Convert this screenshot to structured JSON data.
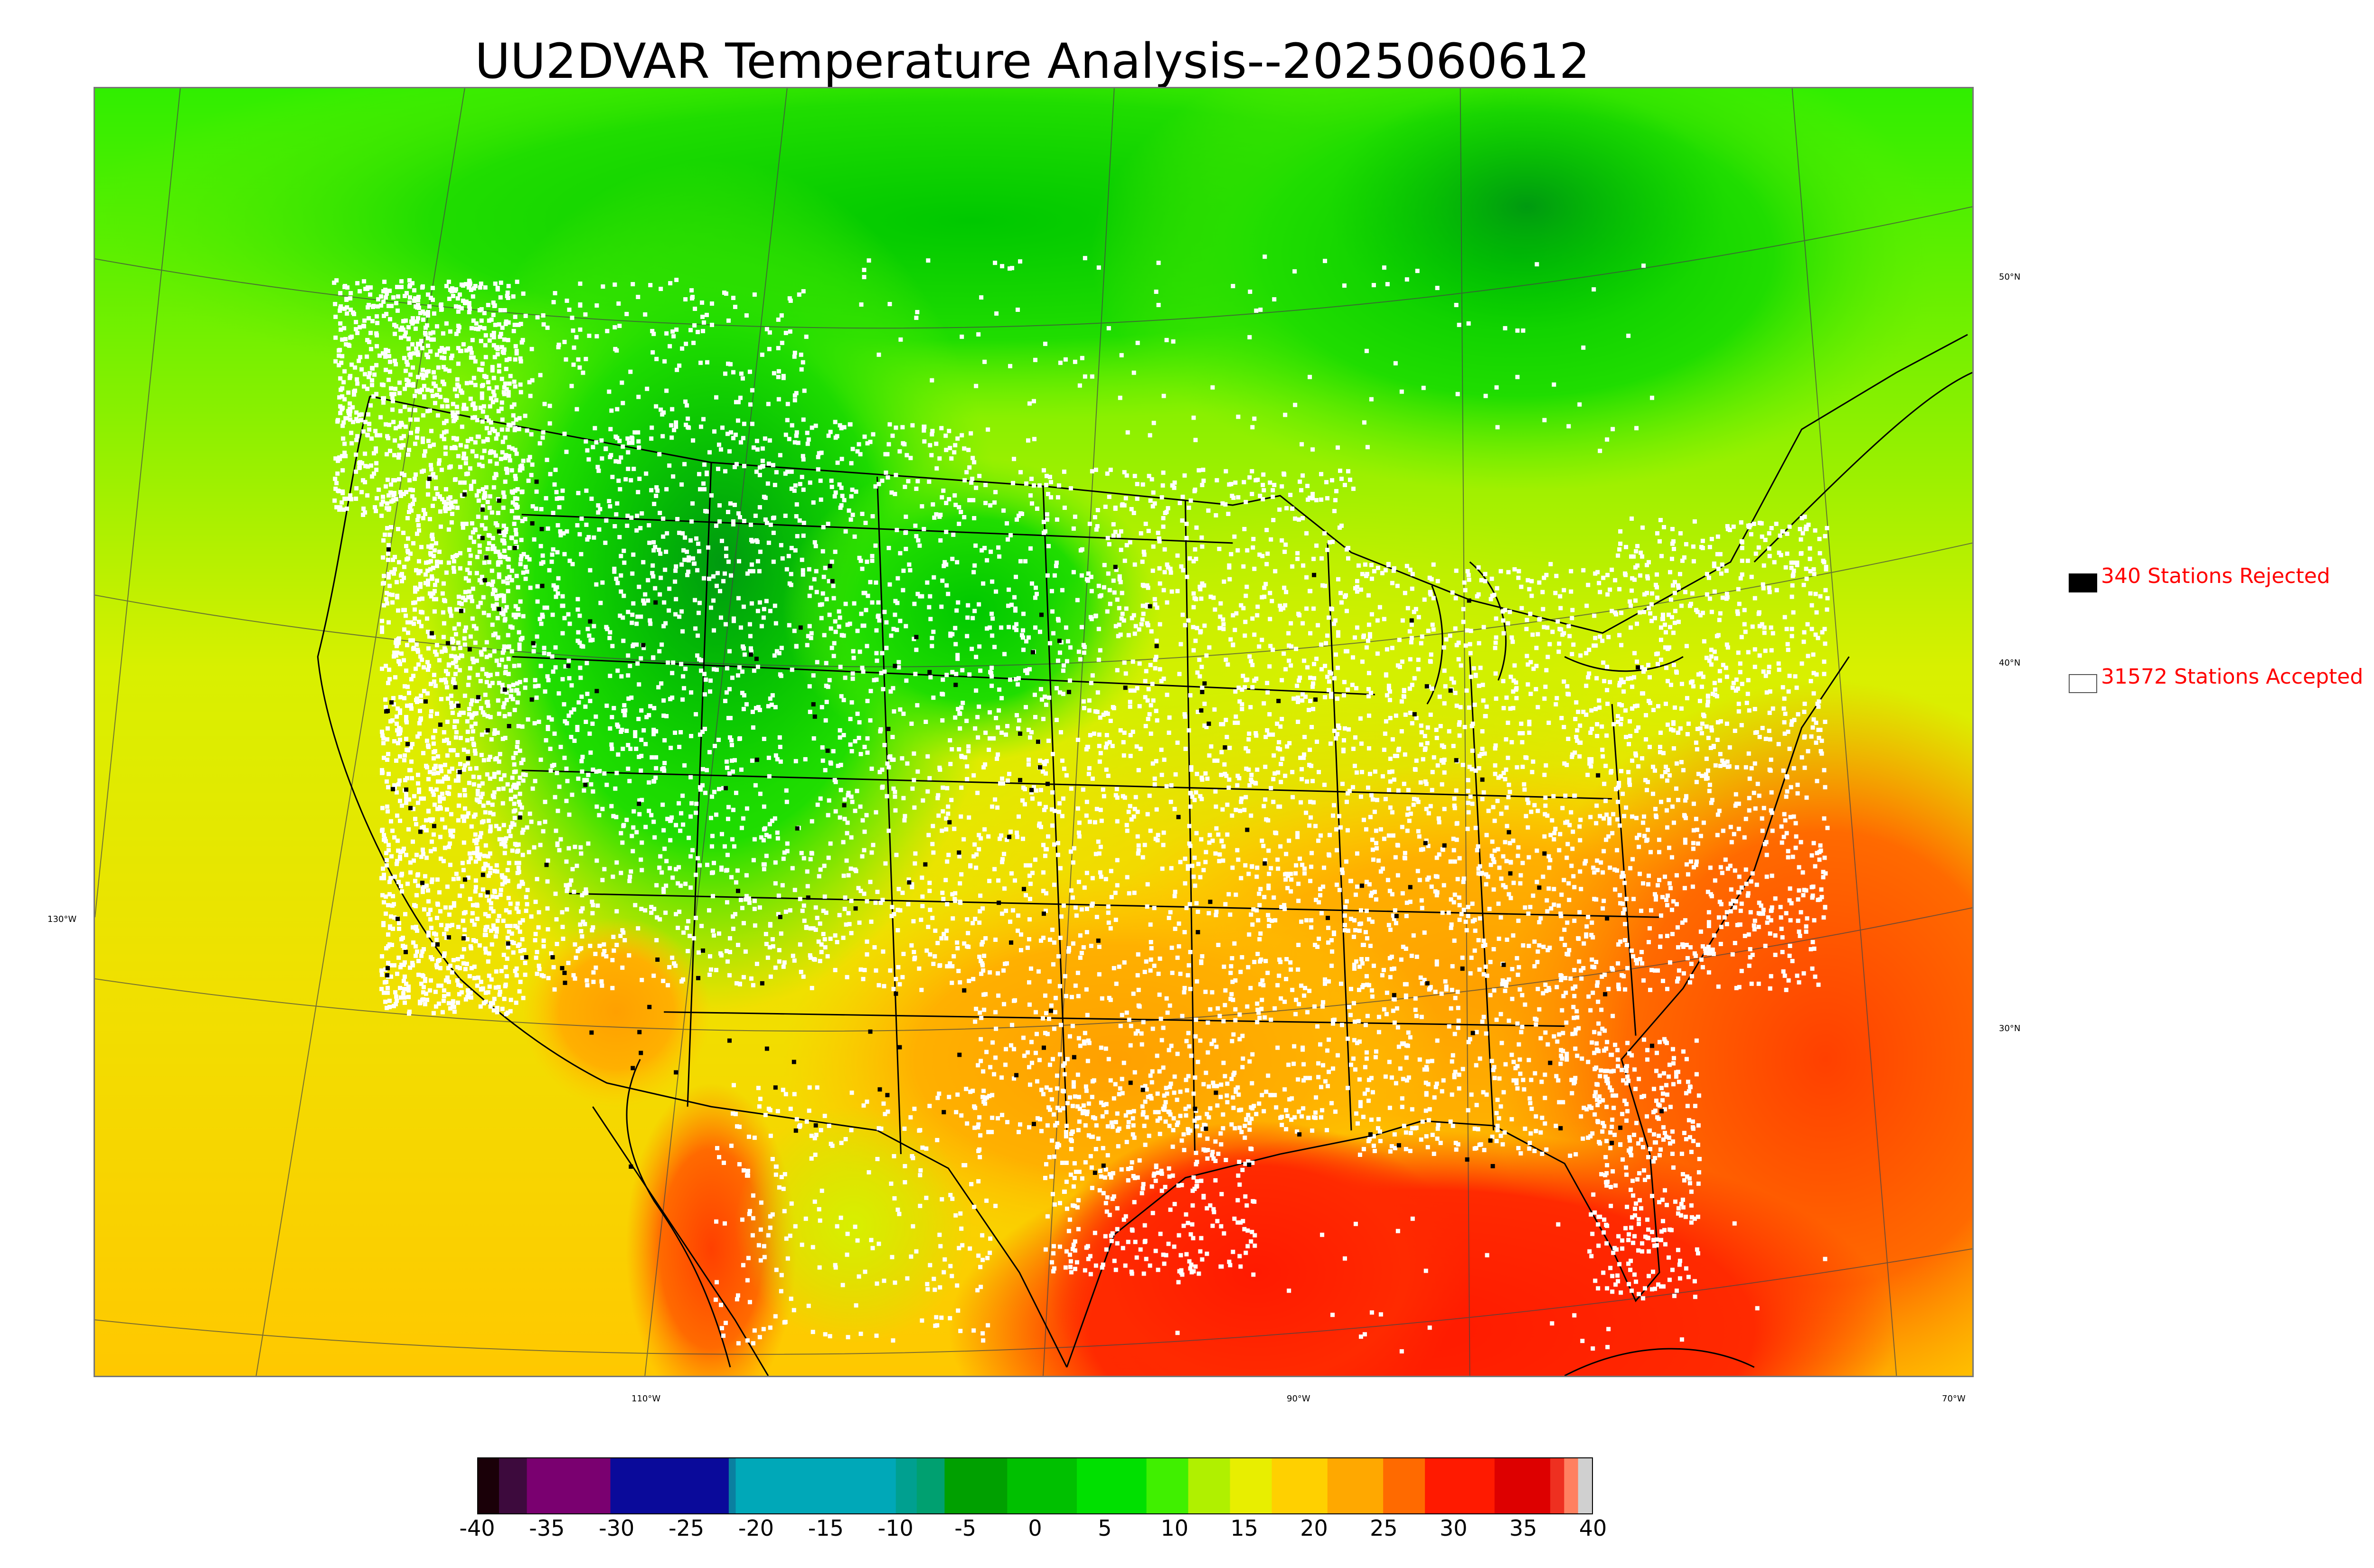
{
  "title": "UU2DVAR Temperature Analysis--2025060612",
  "map": {
    "lat_labels": [
      "50°N",
      "40°N",
      "30°N"
    ],
    "lon_labels": [
      "130°W",
      "110°W",
      "90°W",
      "70°W"
    ]
  },
  "legend": {
    "rejected": {
      "label": "340 Stations Rejected",
      "count": 340,
      "swatch_color": "#000000"
    },
    "accepted": {
      "label": "31572 Stations Accepted",
      "count": 31572,
      "swatch_color": "#ffffff"
    },
    "text_color": "#ff0000"
  },
  "colorbar": {
    "min": -40,
    "max": 40,
    "ticks": [
      "-40",
      "-35",
      "-30",
      "-25",
      "-20",
      "-15",
      "-10",
      "-5",
      "0",
      "5",
      "10",
      "15",
      "20",
      "25",
      "30",
      "35",
      "40"
    ],
    "segments": [
      {
        "from": -40,
        "to": -38.5,
        "color": "#1a0008"
      },
      {
        "from": -38.5,
        "to": -36.5,
        "color": "#3d0a3d"
      },
      {
        "from": -36.5,
        "to": -30.5,
        "color": "#7a0070"
      },
      {
        "from": -30.5,
        "to": -22,
        "color": "#0a0a9a"
      },
      {
        "from": -22,
        "to": -21.5,
        "color": "#0a80a0"
      },
      {
        "from": -21.5,
        "to": -10,
        "color": "#00a8b8"
      },
      {
        "from": -10,
        "to": -8.5,
        "color": "#00a090"
      },
      {
        "from": -8.5,
        "to": -6.5,
        "color": "#00a070"
      },
      {
        "from": -6.5,
        "to": -2,
        "color": "#00a000"
      },
      {
        "from": -2,
        "to": 3,
        "color": "#00c000"
      },
      {
        "from": 3,
        "to": 8,
        "color": "#00e000"
      },
      {
        "from": 8,
        "to": 11,
        "color": "#40f000"
      },
      {
        "from": 11,
        "to": 14,
        "color": "#b0f000"
      },
      {
        "from": 14,
        "to": 17,
        "color": "#e8ee00"
      },
      {
        "from": 17,
        "to": 21,
        "color": "#ffd000"
      },
      {
        "from": 21,
        "to": 25,
        "color": "#ffa800"
      },
      {
        "from": 25,
        "to": 28,
        "color": "#ff6a00"
      },
      {
        "from": 28,
        "to": 33,
        "color": "#ff1a00"
      },
      {
        "from": 33,
        "to": 37,
        "color": "#dd0000"
      },
      {
        "from": 37,
        "to": 38,
        "color": "#ee3020"
      },
      {
        "from": 38,
        "to": 39,
        "color": "#ff8060"
      },
      {
        "from": 39,
        "to": 40,
        "color": "#d0d0d0"
      }
    ]
  }
}
